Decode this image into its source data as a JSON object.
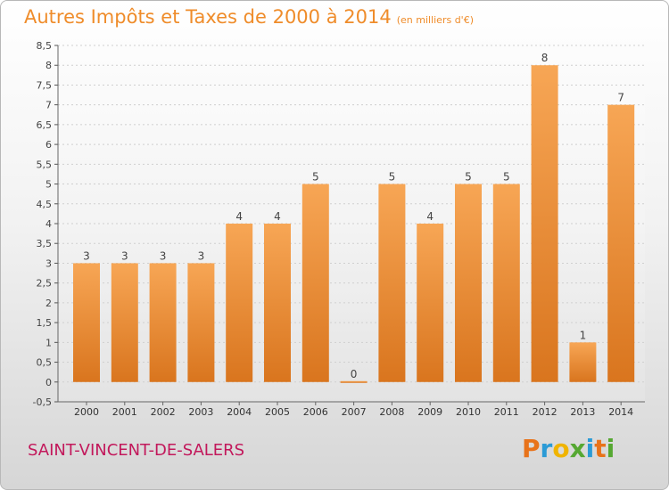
{
  "header": {
    "title": "Autres Impôts et Taxes de 2000 à 2014",
    "subtitle": "(en milliers d'€)"
  },
  "footer": {
    "commune": "SAINT-VINCENT-DE-SALERS",
    "logo_letters": [
      "P",
      "r",
      "o",
      "x",
      "i",
      "t",
      "i"
    ],
    "logo_colors": [
      "#e8731a",
      "#2b9bd6",
      "#f0b400",
      "#56a832",
      "#2b9bd6",
      "#e8731a",
      "#56a832"
    ]
  },
  "colors": {
    "bar_light": "#f7a655",
    "bar_dark": "#d9751e",
    "title": "#ef8c2a",
    "commune": "#c2185b"
  },
  "chart_data": {
    "type": "bar",
    "title": "Autres Impôts et Taxes de 2000 à 2014",
    "subtitle": "(en milliers d'€)",
    "categories": [
      "2000",
      "2001",
      "2002",
      "2003",
      "2004",
      "2005",
      "2006",
      "2007",
      "2008",
      "2009",
      "2010",
      "2011",
      "2012",
      "2013",
      "2014"
    ],
    "values": [
      3,
      3,
      3,
      3,
      4,
      4,
      5,
      0,
      5,
      4,
      5,
      5,
      8,
      1,
      7
    ],
    "data_labels": [
      "3",
      "3",
      "3",
      "3",
      "4",
      "4",
      "5",
      "0",
      "5",
      "4",
      "5",
      "5",
      "8",
      "1",
      "7"
    ],
    "ylim": [
      -0.5,
      8.5
    ],
    "yticks": [
      -0.5,
      0,
      0.5,
      1,
      1.5,
      2,
      2.5,
      3,
      3.5,
      4,
      4.5,
      5,
      5.5,
      6,
      6.5,
      7,
      7.5,
      8,
      8.5
    ],
    "ytick_labels": [
      "-0,5",
      "0",
      "0,5",
      "1",
      "1,5",
      "2",
      "2,5",
      "3",
      "3,5",
      "4",
      "4,5",
      "5",
      "5,5",
      "6",
      "6,5",
      "7",
      "7,5",
      "8",
      "8,5"
    ],
    "grid": true
  }
}
